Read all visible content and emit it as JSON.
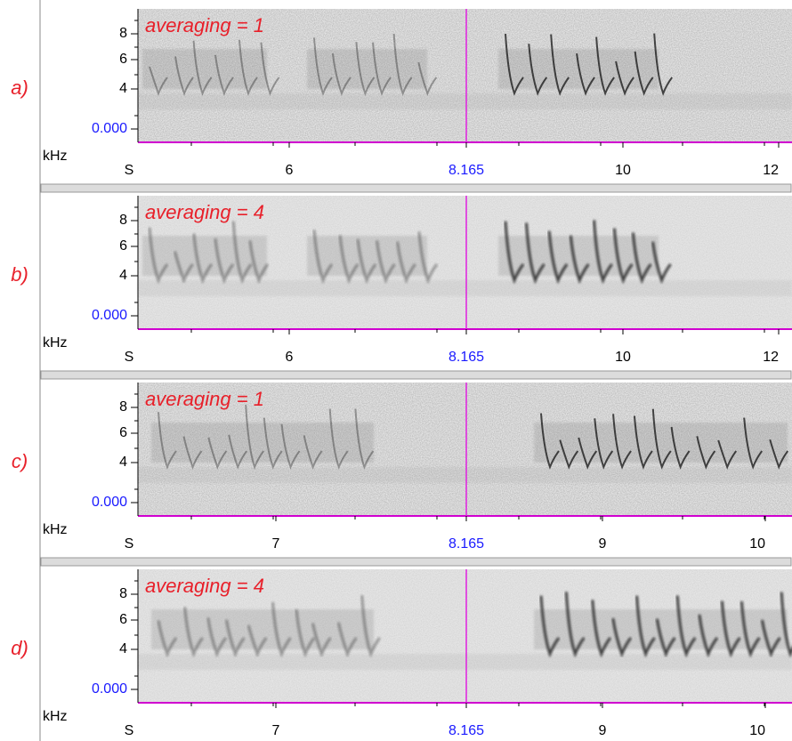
{
  "panels": [
    {
      "label": "a)",
      "annotation": "averaging = 1",
      "y_ticks": [
        "8",
        "6",
        "4"
      ],
      "y_zero": "0.000",
      "y_unit": "kHz",
      "x_unit": "S",
      "x_ticks": [
        "6",
        "8.165",
        "10",
        "12"
      ]
    },
    {
      "label": "b)",
      "annotation": "averaging = 4",
      "y_ticks": [
        "8",
        "6",
        "4"
      ],
      "y_zero": "0.000",
      "y_unit": "kHz",
      "x_unit": "S",
      "x_ticks": [
        "6",
        "8.165",
        "10",
        "12"
      ]
    },
    {
      "label": "c)",
      "annotation": "averaging = 1",
      "y_ticks": [
        "8",
        "6",
        "4"
      ],
      "y_zero": "0.000",
      "y_unit": "kHz",
      "x_unit": "S",
      "x_ticks": [
        "7",
        "8.165",
        "9",
        "10"
      ]
    },
    {
      "label": "d)",
      "annotation": "averaging = 4",
      "y_ticks": [
        "8",
        "6",
        "4"
      ],
      "y_zero": "0.000",
      "y_unit": "kHz",
      "x_unit": "S",
      "x_ticks": [
        "7",
        "8.165",
        "9",
        "10"
      ]
    }
  ]
}
